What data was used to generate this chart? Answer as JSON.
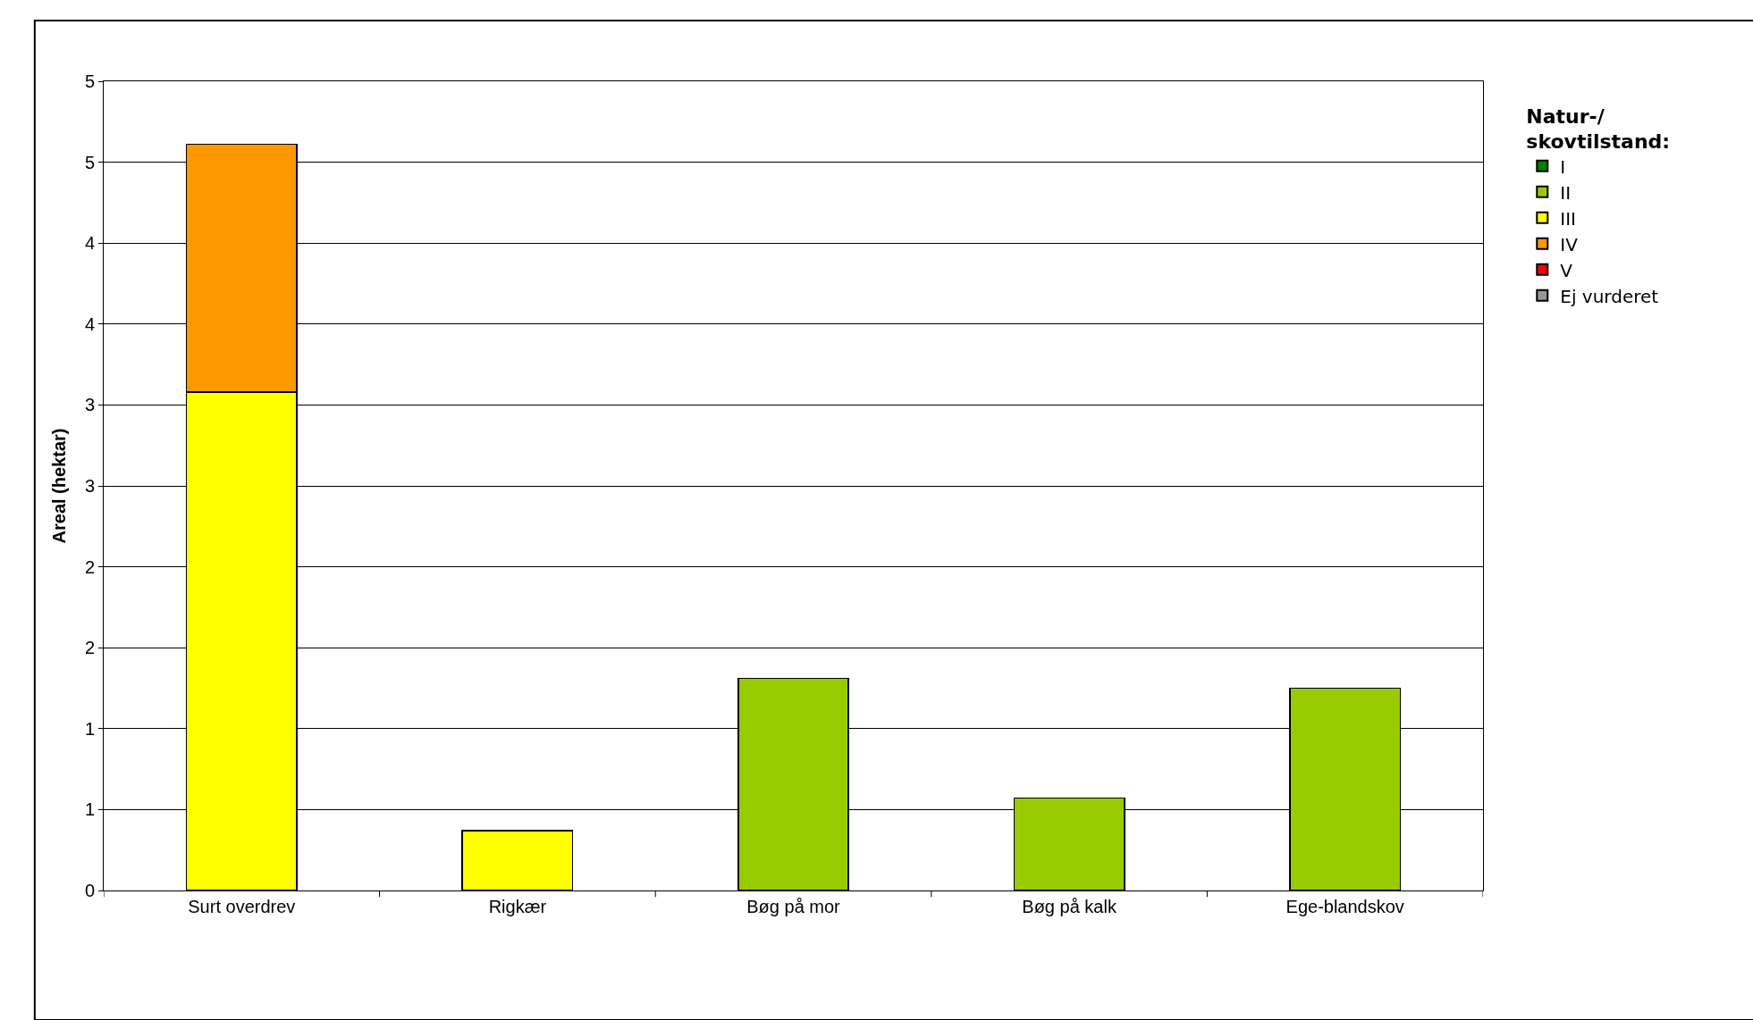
{
  "chart_data": {
    "type": "bar",
    "stacked": true,
    "ylabel": "Areal (hektar)",
    "legend_title": "Natur-/\nskovtilstand:",
    "legend": "right",
    "categories": [
      "Surt overdrev",
      "Rigkær",
      "Bøg på mor",
      "Bøg på kalk",
      "Ege-blandskov"
    ],
    "series": [
      {
        "name": "I",
        "color": "#008000",
        "values": [
          null,
          null,
          null,
          null,
          null
        ]
      },
      {
        "name": "II",
        "color": "#99cc00",
        "values": [
          null,
          null,
          1.31,
          0.57,
          1.25
        ]
      },
      {
        "name": "III",
        "color": "#ffff00",
        "values": [
          3.08,
          0.37,
          null,
          null,
          null
        ]
      },
      {
        "name": "IV",
        "color": "#ff9900",
        "values": [
          1.53,
          null,
          null,
          null,
          null
        ]
      },
      {
        "name": "V",
        "color": "#ff0000",
        "values": [
          null,
          null,
          null,
          null,
          null
        ]
      },
      {
        "name": "Ej vurderet",
        "color": "#969696",
        "values": [
          null,
          null,
          null,
          null,
          null
        ]
      }
    ],
    "ylim": [
      0,
      5
    ],
    "yticks": [
      0,
      {
        "value": 0.5,
        "label": "1"
      },
      1,
      {
        "value": 1.5,
        "label": "2"
      },
      2,
      {
        "value": 2.5,
        "label": "3"
      },
      3,
      {
        "value": 3.5,
        "label": "4"
      },
      4,
      {
        "value": 4.5,
        "label": "5"
      },
      5
    ],
    "grid": "y"
  }
}
